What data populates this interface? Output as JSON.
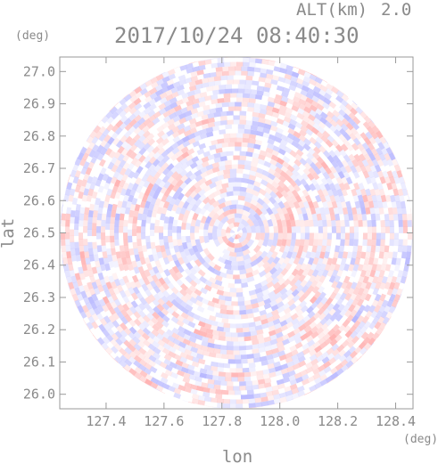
{
  "header": {
    "altitude_label": "ALT(km)",
    "altitude_value": "2.0",
    "timestamp": "2017/10/24 08:40:30"
  },
  "chart_data": {
    "type": "heatmap",
    "title": "2017/10/24 08:40:30",
    "xlabel": "lon",
    "ylabel": "lat",
    "x_unit": "(deg)",
    "y_unit": "(deg)",
    "xlim": [
      127.24,
      128.46
    ],
    "ylim": [
      25.955,
      27.045
    ],
    "x_ticks": [
      "127.4",
      "127.6",
      "127.8",
      "128.0",
      "128.2",
      "128.4"
    ],
    "y_ticks": [
      "27.0",
      "26.9",
      "26.8",
      "26.7",
      "26.6",
      "26.5",
      "26.4",
      "26.3",
      "26.2",
      "26.1",
      "26.0"
    ],
    "center": {
      "lon": 127.85,
      "lat": 26.5
    },
    "radius_deg": 0.545,
    "colors": {
      "positive": "#ffb3b3",
      "negative": "#b8b8ff",
      "neutral": "#ffffff"
    },
    "grid": false,
    "legend": "none"
  }
}
